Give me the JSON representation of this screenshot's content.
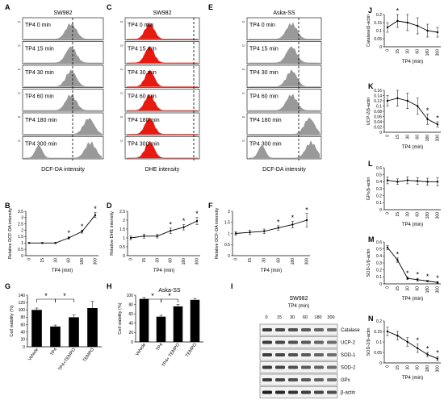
{
  "panel_letters": [
    "A",
    "B",
    "C",
    "D",
    "E",
    "F",
    "G",
    "H",
    "I",
    "J",
    "K",
    "L",
    "M",
    "N"
  ],
  "histogram_panels": [
    {
      "letter": "A",
      "title": "SW982",
      "xlabel": "DCF-DA intensity",
      "color": "#999999"
    },
    {
      "letter": "C",
      "title": "SW982",
      "xlabel": "DHE intensity",
      "color": "#e8190f"
    },
    {
      "letter": "E",
      "title": "Aska-SS",
      "xlabel": "DCF-DA intensity",
      "color": "#999999"
    }
  ],
  "histogram_rows": [
    "TP4 0 min",
    "TP4 15 min",
    "TP4 30 min",
    "TP4 60 min",
    "TP4 180 min",
    "TP4 300 min"
  ],
  "wb": {
    "title": "SW982",
    "subtitle": "TP4 (min)",
    "lanes": [
      "0",
      "15",
      "30",
      "60",
      "180",
      "300"
    ],
    "bands": [
      "Catalase",
      "UCP-2",
      "SOD-1",
      "SOD-2",
      "GPx",
      "β-actin"
    ]
  },
  "chart_data": [
    {
      "id": "B",
      "type": "line",
      "xlabel": "TP4 (min)",
      "ylabel": "Relative DCF-DA intensity",
      "categories": [
        "0",
        "15",
        "30",
        "60",
        "180",
        "300"
      ],
      "values": [
        1.0,
        1.0,
        1.0,
        1.4,
        1.9,
        3.2
      ],
      "errors": [
        0.03,
        0.03,
        0.04,
        0.08,
        0.12,
        0.2
      ],
      "stars": [
        false,
        false,
        false,
        true,
        true,
        true
      ],
      "ylim": [
        0,
        3.5
      ],
      "yticks": [
        "0",
        "0.5",
        "1",
        "1.5",
        "2",
        "2.5",
        "3",
        "3.5"
      ]
    },
    {
      "id": "D",
      "type": "line",
      "xlabel": "TP4 (min)",
      "ylabel": "Relative DHE intensity",
      "categories": [
        "0",
        "15",
        "30",
        "60",
        "180",
        "300"
      ],
      "values": [
        1.0,
        1.1,
        1.1,
        1.4,
        1.6,
        1.95
      ],
      "errors": [
        0.1,
        0.12,
        0.1,
        0.15,
        0.15,
        0.2
      ],
      "stars": [
        false,
        false,
        false,
        true,
        true,
        true
      ],
      "ylim": [
        0,
        2.5
      ],
      "yticks": [
        "0",
        "0.5",
        "1",
        "1.5",
        "2",
        "2.5"
      ]
    },
    {
      "id": "F",
      "type": "line",
      "xlabel": "TP4 (min)",
      "ylabel": "Relative DCF-DA intensity",
      "categories": [
        "0",
        "15",
        "30",
        "60",
        "180",
        "300"
      ],
      "values": [
        1.0,
        1.05,
        1.1,
        1.25,
        1.4,
        1.6
      ],
      "errors": [
        0.08,
        0.1,
        0.1,
        0.1,
        0.15,
        0.3
      ],
      "stars": [
        false,
        false,
        false,
        true,
        true,
        true
      ],
      "ylim": [
        0,
        2
      ],
      "yticks": [
        "0",
        "0.5",
        "1",
        "1.5",
        "2"
      ]
    },
    {
      "id": "G",
      "type": "bar",
      "ylabel": "Cell viability (%)",
      "categories": [
        "Vehicle",
        "TP4",
        "TP4+TEMPO",
        "TEMPO"
      ],
      "values": [
        100,
        55,
        80,
        105
      ],
      "errors": [
        5,
        4,
        6,
        18
      ],
      "ylim": [
        0,
        140
      ],
      "yticks": [
        "0",
        "20",
        "40",
        "60",
        "80",
        "100",
        "120",
        "140"
      ],
      "brackets": [
        [
          0,
          1
        ],
        [
          1,
          2
        ]
      ]
    },
    {
      "id": "H",
      "type": "bar",
      "ylabel": "Cell viability (%)",
      "title": "Aska-SS",
      "categories": [
        "Vehicle",
        "TP4",
        "TP4+ TEMPO",
        "TEMPO"
      ],
      "values": [
        92,
        54,
        76,
        90
      ],
      "errors": [
        3,
        3,
        4,
        3
      ],
      "ylim": [
        0,
        100
      ],
      "yticks": [
        "0",
        "20",
        "40",
        "60",
        "80",
        "100"
      ],
      "brackets": [
        [
          0,
          1
        ],
        [
          1,
          2
        ]
      ]
    },
    {
      "id": "J",
      "type": "line",
      "xlabel": "TP4 (min)",
      "ylabel": "Catalase/β-actin",
      "categories": [
        "0",
        "15",
        "30",
        "60",
        "180",
        "300"
      ],
      "values": [
        0.12,
        0.16,
        0.15,
        0.13,
        0.1,
        0.09
      ],
      "errors": [
        0.03,
        0.04,
        0.05,
        0.05,
        0.04,
        0.03
      ],
      "stars": [
        false,
        true,
        false,
        false,
        false,
        false
      ],
      "ylim": [
        0,
        0.2
      ],
      "yticks": [
        "0",
        "0.05",
        "0.1",
        "0.15",
        "0.2"
      ]
    },
    {
      "id": "K",
      "type": "line",
      "xlabel": "TP4 (min)",
      "ylabel": "UCP-2/β-actin",
      "categories": [
        "0",
        "15",
        "30",
        "60",
        "180",
        "300"
      ],
      "values": [
        0.12,
        0.13,
        0.12,
        0.1,
        0.05,
        0.03
      ],
      "errors": [
        0.02,
        0.03,
        0.03,
        0.03,
        0.02,
        0.01
      ],
      "stars": [
        false,
        false,
        false,
        false,
        true,
        true
      ],
      "ylim": [
        0,
        0.16
      ],
      "yticks": [
        "0",
        "0.02",
        "0.04",
        "0.06",
        "0.08",
        "0.1",
        "0.12",
        "0.14",
        "0.16"
      ]
    },
    {
      "id": "L",
      "type": "line",
      "xlabel": "TP4 (min)",
      "ylabel": "GPx/β-actin",
      "categories": [
        "0",
        "15",
        "30",
        "60",
        "180",
        "300"
      ],
      "values": [
        0.42,
        0.4,
        0.42,
        0.41,
        0.4,
        0.4
      ],
      "errors": [
        0.05,
        0.04,
        0.05,
        0.05,
        0.05,
        0.06
      ],
      "stars": [
        false,
        false,
        false,
        false,
        false,
        false
      ],
      "ylim": [
        0,
        0.6
      ],
      "yticks": [
        "0",
        "0.1",
        "0.2",
        "0.3",
        "0.4",
        "0.5",
        "0.6"
      ]
    },
    {
      "id": "M",
      "type": "line",
      "xlabel": "TP4 (min)",
      "ylabel": "SOD-1/β-actin",
      "categories": [
        "0",
        "15",
        "30",
        "60",
        "180",
        "300"
      ],
      "values": [
        0.52,
        0.34,
        0.08,
        0.06,
        0.04,
        0.02
      ],
      "errors": [
        0.03,
        0.03,
        0.02,
        0.02,
        0.01,
        0.01
      ],
      "stars": [
        false,
        true,
        true,
        true,
        true,
        true
      ],
      "ylim": [
        0,
        0.6
      ],
      "yticks": [
        "0",
        "0.1",
        "0.2",
        "0.3",
        "0.4",
        "0.5",
        "0.6"
      ]
    },
    {
      "id": "N",
      "type": "line",
      "xlabel": "TP4 (min)",
      "ylabel": "SOD-2/β-actin",
      "categories": [
        "0",
        "15",
        "30",
        "60",
        "180",
        "300"
      ],
      "values": [
        0.15,
        0.13,
        0.1,
        0.07,
        0.04,
        0.02
      ],
      "errors": [
        0.02,
        0.02,
        0.02,
        0.02,
        0.01,
        0.01
      ],
      "stars": [
        false,
        false,
        false,
        true,
        true,
        true
      ],
      "ylim": [
        0,
        0.2
      ],
      "yticks": [
        "0",
        "0.05",
        "0.1",
        "0.15",
        "0.2"
      ]
    }
  ]
}
